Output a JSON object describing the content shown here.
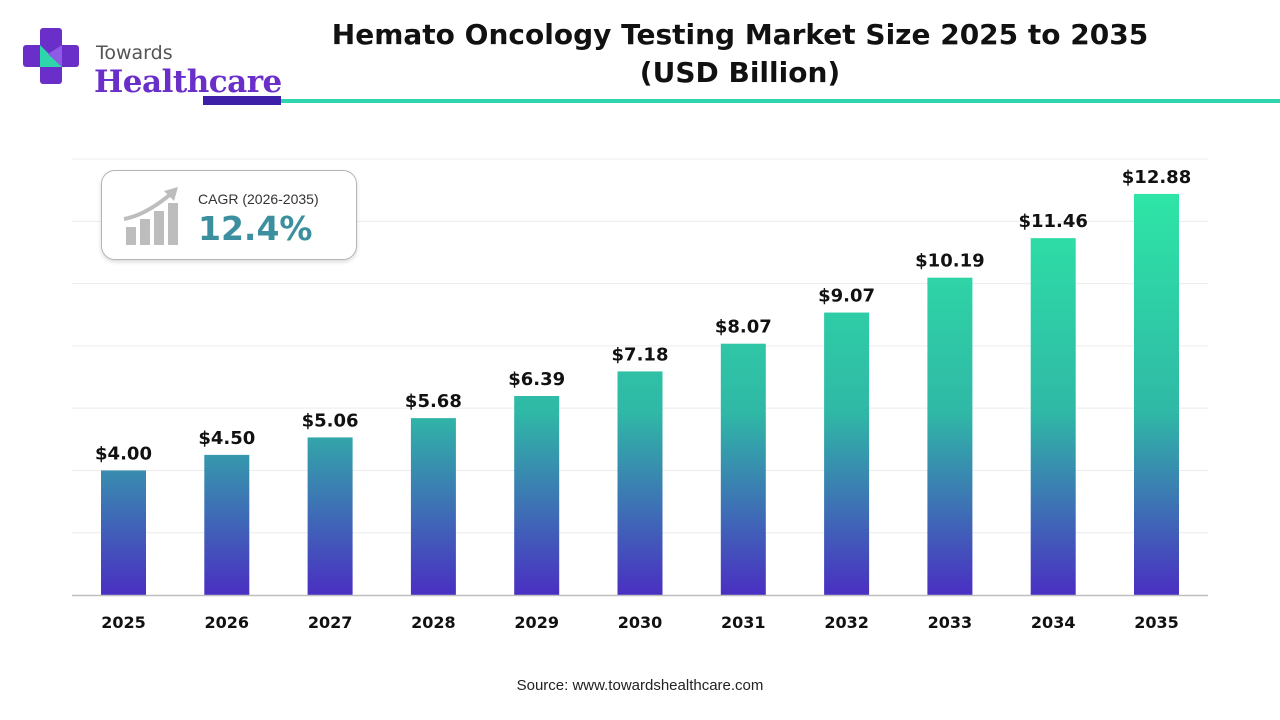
{
  "brand": {
    "line1": "Towards",
    "line2": "Healthcare"
  },
  "header": {
    "title_line1": "Hemato Oncology Testing Market Size 2025 to 2035",
    "title_line2": "(USD Billion)"
  },
  "cagr": {
    "label": "CAGR (2026-2035)",
    "value": "12.4%",
    "icon": "growth-chart-icon"
  },
  "source": "Source: www.towardshealthcare.com",
  "colors": {
    "bar_top": "#2ee6a6",
    "bar_bottom": "#4a2fc2",
    "brand_purple": "#6a2fc9",
    "accent_teal": "#2fd5ab"
  },
  "chart_data": {
    "type": "bar",
    "title": "Hemato Oncology Testing Market Size 2025 to 2035 (USD Billion)",
    "categories": [
      "2025",
      "2026",
      "2027",
      "2028",
      "2029",
      "2030",
      "2031",
      "2032",
      "2033",
      "2034",
      "2035"
    ],
    "values": [
      4.0,
      4.5,
      5.06,
      5.68,
      6.39,
      7.18,
      8.07,
      9.07,
      10.19,
      11.46,
      12.88
    ],
    "data_labels": [
      "$4.00",
      "$4.50",
      "$5.06",
      "$5.68",
      "$6.39",
      "$7.18",
      "$8.07",
      "$9.07",
      "$10.19",
      "$11.46",
      "$12.88"
    ],
    "xlabel": "",
    "ylabel": "",
    "ylim": [
      0,
      14
    ],
    "grid": true,
    "legend": "none"
  }
}
